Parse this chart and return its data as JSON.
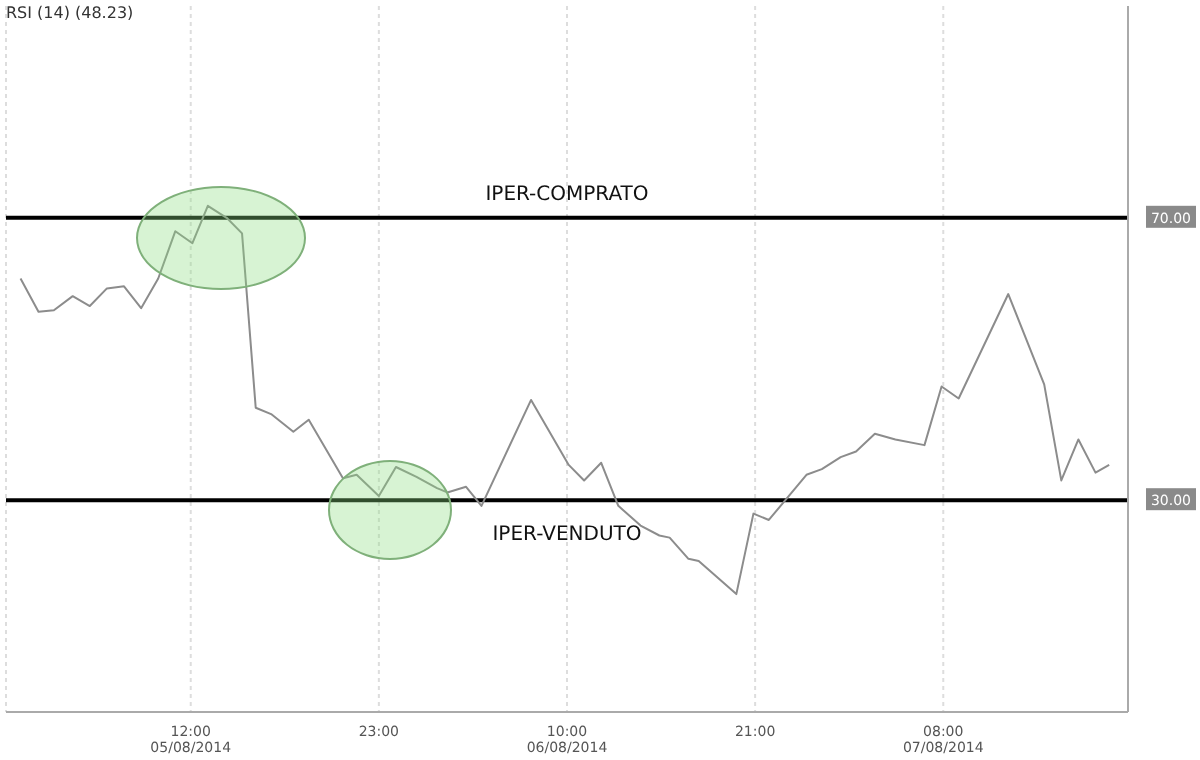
{
  "chart_data": {
    "type": "line",
    "title": "RSI (14)  (48.23)",
    "x": [
      "2014-08-05T02:03",
      "2014-08-05T03:06",
      "2014-08-05T04:00",
      "2014-08-05T05:06",
      "2014-08-05T06:06",
      "2014-08-05T07:06",
      "2014-08-05T08:06",
      "2014-08-05T09:06",
      "2014-08-05T10:06",
      "2014-08-05T11:06",
      "2014-08-05T12:06",
      "2014-08-05T13:00",
      "2014-08-05T14:06",
      "2014-08-05T15:00",
      "2014-08-05T15:48",
      "2014-08-05T16:42",
      "2014-08-05T18:00",
      "2014-08-05T18:54",
      "2014-08-05T20:54",
      "2014-08-05T21:42",
      "2014-08-05T23:00",
      "2014-08-06T00:00",
      "2014-08-06T01:12",
      "2014-08-06T02:24",
      "2014-08-06T03:00",
      "2014-08-06T04:06",
      "2014-08-06T05:00",
      "2014-08-06T07:54",
      "2014-08-06T10:06",
      "2014-08-06T11:00",
      "2014-08-06T12:00",
      "2014-08-06T13:00",
      "2014-08-06T14:18",
      "2014-08-06T15:24",
      "2014-08-06T16:00",
      "2014-08-06T17:06",
      "2014-08-06T17:42",
      "2014-08-06T19:54",
      "2014-08-06T20:54",
      "2014-08-06T21:48",
      "2014-08-07T00:00",
      "2014-08-07T00:54",
      "2014-08-07T02:00",
      "2014-08-07T02:54",
      "2014-08-07T04:00",
      "2014-08-07T05:12",
      "2014-08-07T06:54",
      "2014-08-07T07:54",
      "2014-08-07T08:54",
      "2014-08-07T11:48",
      "2014-08-07T13:54",
      "2014-08-07T14:54",
      "2014-08-07T15:54",
      "2014-08-07T16:54",
      "2014-08-07T17:42"
    ],
    "series": [
      {
        "color": "#8c8c8c",
        "values": [
          61.4,
          56.7,
          56.9,
          58.9,
          57.5,
          60.0,
          60.3,
          57.2,
          61.4,
          68.1,
          66.4,
          71.7,
          70.0,
          67.8,
          43.1,
          42.2,
          39.7,
          41.4,
          33.1,
          33.6,
          30.6,
          34.7,
          33.3,
          31.7,
          31.1,
          31.9,
          29.2,
          44.2,
          35.0,
          32.8,
          35.3,
          29.2,
          26.4,
          25.0,
          24.7,
          21.7,
          21.4,
          16.7,
          28.1,
          27.2,
          33.6,
          34.4,
          36.1,
          36.9,
          39.4,
          38.6,
          37.8,
          46.1,
          44.4,
          59.2,
          46.4,
          32.8,
          38.6,
          33.9,
          35.0
        ]
      }
    ],
    "xlim": [
      "2014-08-05T01:12",
      "2014-08-07T18:48"
    ],
    "xticks": [
      {
        "value": "2014-08-05T12:00",
        "label": "12:00\n05/08/2014"
      },
      {
        "value": "2014-08-05T23:00",
        "label": "23:00"
      },
      {
        "value": "2014-08-06T10:00",
        "label": "10:00\n06/08/2014"
      },
      {
        "value": "2014-08-06T21:00",
        "label": "21:00"
      },
      {
        "value": "2014-08-07T08:00",
        "label": "08:00\n07/08/2014"
      }
    ],
    "ylim": [
      0,
      100
    ],
    "yticks": [
      {
        "value": 30,
        "label": "30.00"
      },
      {
        "value": 70,
        "label": "70.00"
      }
    ],
    "ref_lines": [
      {
        "axis": "y",
        "value": 70,
        "label": "IPER-COMPRATO",
        "color": "#000000"
      },
      {
        "axis": "y",
        "value": 30,
        "label": "IPER-VENDUTO",
        "color": "#000000"
      }
    ],
    "grid": "x",
    "legend": false,
    "marker": "none",
    "line_style": "solid"
  }
}
